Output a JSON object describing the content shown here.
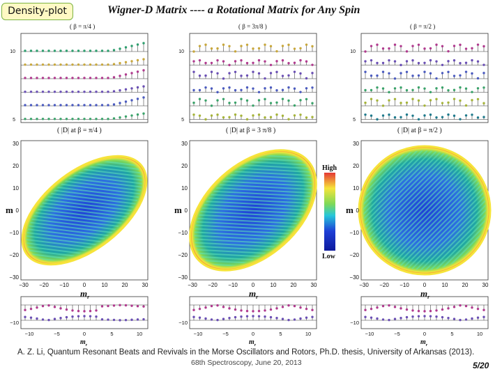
{
  "badge": "Density-plot",
  "title": "Wigner-D Matrix ---- a Rotational Matrix for Any Spin",
  "columns": [
    {
      "beta_num": "π",
      "beta_den": "4",
      "matrix_num": "π",
      "matrix_den": "4"
    },
    {
      "beta_num": "3π",
      "beta_den": "8",
      "matrix_num": "3 π",
      "matrix_den": "8"
    },
    {
      "beta_num": "π",
      "beta_den": "2",
      "matrix_num": "π",
      "matrix_den": "2"
    }
  ],
  "beta_prefix": "β =",
  "matrix_label_mid": "at  β =",
  "stem_axis": {
    "tick_high": "10",
    "tick_low": "5"
  },
  "density_axes": {
    "ylabel": "m",
    "xlabel": "m",
    "xlabel_sub": "r",
    "xticks": [
      "−30",
      "−20",
      "−10",
      "0",
      "10",
      "20",
      "30"
    ],
    "yticks": [
      "30",
      "20",
      "10",
      "0",
      "−10",
      "−20",
      "−30"
    ]
  },
  "colorbar": {
    "high": "High",
    "low": "Low"
  },
  "bottom_axis": {
    "tick": "−10",
    "xticks": [
      "−10",
      "−5",
      "0",
      "5",
      "10"
    ],
    "xlabel": "m",
    "xlabel_sub": "r"
  },
  "citation": "A. Z. Li, Quantum Resonant Beats and Revivals in the Morse Oscillators and Rotors, Ph.D. thesis, University of  Arkansas (2013).",
  "footer": "68th Spectroscopy, June 20, 2013",
  "page": "5/20",
  "colors": {
    "background": "#ffffff",
    "badge_bg": "#fff9c4",
    "badge_border": "#7cb342",
    "density_low": "#1a2fd4",
    "density_high": "#e53935"
  }
}
